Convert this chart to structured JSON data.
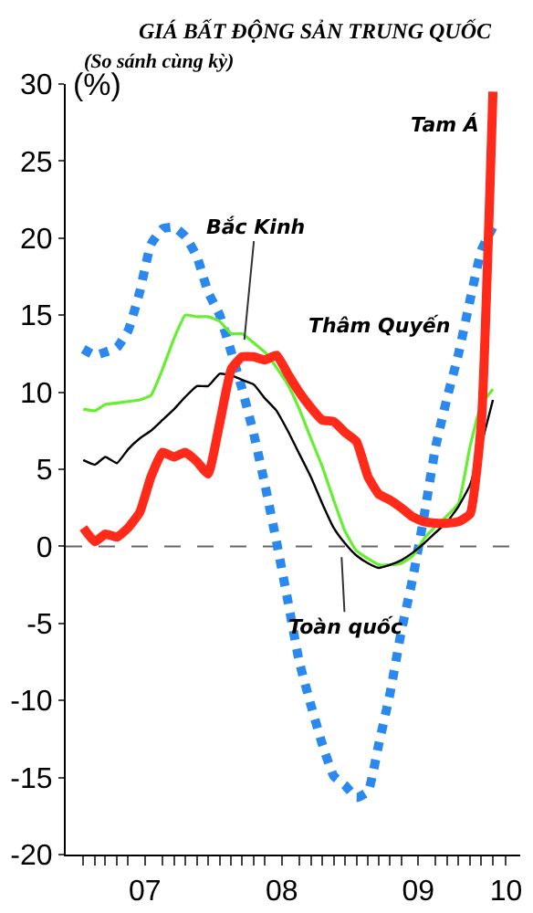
{
  "chart_data": {
    "type": "line",
    "title": "GIÁ BẤT ĐỘNG SẢN TRUNG QUỐC",
    "subtitle": "(So sánh cùng kỳ)",
    "ylabel": "(%)",
    "x": [
      "2007-01",
      "2007-02",
      "2007-03",
      "2007-04",
      "2007-05",
      "2007-06",
      "2007-07",
      "2007-08",
      "2007-09",
      "2007-10",
      "2007-11",
      "2007-12",
      "2008-01",
      "2008-02",
      "2008-03",
      "2008-04",
      "2008-05",
      "2008-06",
      "2008-07",
      "2008-08",
      "2008-09",
      "2008-10",
      "2008-11",
      "2008-12",
      "2009-01",
      "2009-02",
      "2009-03",
      "2009-04",
      "2009-05",
      "2009-06",
      "2009-07",
      "2009-08",
      "2009-09",
      "2009-10",
      "2009-11",
      "2009-12",
      "2010-01"
    ],
    "series": [
      {
        "name": "Thâm Quyến",
        "color": "#2a88ee",
        "line_style": "dotted",
        "values": [
          12.8,
          12.4,
          12.6,
          12.9,
          14.0,
          16.5,
          19.6,
          20.6,
          20.7,
          20.1,
          18.8,
          16.5,
          15.0,
          12.6,
          10.2,
          7.3,
          4.0,
          0.3,
          -3.5,
          -7.5,
          -10.3,
          -12.8,
          -14.9,
          -15.5,
          -16.3,
          -15.9,
          -12.9,
          -9.5,
          -5.5,
          -2.0,
          2.0,
          6.5,
          9.7,
          12.5,
          16.0,
          19.2,
          20.7
        ]
      },
      {
        "name": "Bắc Kinh",
        "color": "#66ee33",
        "line_style": "solid",
        "values": [
          8.9,
          8.8,
          9.2,
          9.3,
          9.4,
          9.5,
          9.8,
          11.5,
          13.5,
          15.0,
          14.9,
          14.9,
          14.6,
          13.8,
          13.8,
          13.2,
          12.6,
          11.6,
          10.5,
          8.9,
          7.0,
          5.2,
          3.0,
          1.0,
          -0.3,
          -0.8,
          -1.2,
          -1.2,
          -1.1,
          -0.6,
          0.5,
          1.3,
          2.0,
          2.8,
          6.5,
          9.2,
          10.2
        ]
      },
      {
        "name": "Toàn quốc",
        "color": "#000000",
        "line_style": "solid",
        "values": [
          5.6,
          5.3,
          5.8,
          5.4,
          6.3,
          7.0,
          7.5,
          8.2,
          8.9,
          9.7,
          10.4,
          10.4,
          11.2,
          11.1,
          10.8,
          10.5,
          9.6,
          8.8,
          7.5,
          6.0,
          4.5,
          2.8,
          1.2,
          0.2,
          -0.6,
          -1.1,
          -1.4,
          -1.2,
          -0.9,
          -0.4,
          0.2,
          0.9,
          1.6,
          2.6,
          4.0,
          null,
          9.5
        ]
      },
      {
        "name": "Tam Á",
        "color": "#ff2a1a",
        "line_style": "solid",
        "values": [
          1.2,
          0.3,
          0.8,
          0.6,
          1.2,
          2.2,
          4.5,
          6.1,
          5.8,
          6.1,
          5.5,
          4.7,
          8.0,
          11.5,
          12.3,
          12.3,
          12.1,
          12.4,
          11.2,
          10.0,
          9.0,
          8.2,
          8.1,
          7.4,
          6.8,
          4.5,
          3.4,
          3.0,
          2.5,
          1.9,
          1.6,
          1.5,
          1.5,
          1.6,
          2.1,
          8.0,
          29.5
        ]
      }
    ],
    "xlim": [
      "2006-11-15",
      "2010-03-15"
    ],
    "xticks": [
      {
        "value": "2007-01-01",
        "label": null
      },
      {
        "value": "2007-02-01",
        "label": null
      },
      {
        "value": "2007-03-01",
        "label": null
      },
      {
        "value": "2007-04-01",
        "label": null
      },
      {
        "value": "2007-05-01",
        "label": null
      },
      {
        "value": "2007-06-15",
        "label": "07"
      },
      {
        "value": "2007-08-01",
        "label": null
      },
      {
        "value": "2007-09-01",
        "label": null
      },
      {
        "value": "2007-10-01",
        "label": null
      },
      {
        "value": "2007-11-01",
        "label": null
      },
      {
        "value": "2007-12-01",
        "label": null
      },
      {
        "value": "2008-01-01",
        "label": null
      },
      {
        "value": "2008-02-01",
        "label": null
      },
      {
        "value": "2008-03-01",
        "label": null
      },
      {
        "value": "2008-04-01",
        "label": null
      },
      {
        "value": "2008-05-01",
        "label": null
      },
      {
        "value": "2008-06-15",
        "label": "08"
      },
      {
        "value": "2008-08-01",
        "label": null
      },
      {
        "value": "2008-09-01",
        "label": null
      },
      {
        "value": "2008-10-01",
        "label": null
      },
      {
        "value": "2008-11-01",
        "label": null
      },
      {
        "value": "2008-12-01",
        "label": null
      },
      {
        "value": "2009-01-01",
        "label": null
      },
      {
        "value": "2009-02-01",
        "label": null
      },
      {
        "value": "2009-03-01",
        "label": null
      },
      {
        "value": "2009-04-01",
        "label": null
      },
      {
        "value": "2009-05-01",
        "label": null
      },
      {
        "value": "2009-06-15",
        "label": "09"
      },
      {
        "value": "2009-08-01",
        "label": null
      },
      {
        "value": "2009-09-01",
        "label": null
      },
      {
        "value": "2009-10-01",
        "label": null
      },
      {
        "value": "2009-11-01",
        "label": null
      },
      {
        "value": "2009-12-01",
        "label": null
      },
      {
        "value": "2010-01-01",
        "label": null
      },
      {
        "value": "2010-02-05",
        "label": "10"
      }
    ],
    "ylim": [
      -20,
      30
    ],
    "yticks": [
      -20,
      -15,
      -10,
      -5,
      0,
      5,
      10,
      15,
      20,
      25,
      30
    ],
    "ref_lines": [
      {
        "axis": "y",
        "value": 0,
        "color": "#666666",
        "line_style": "dashed"
      }
    ],
    "grid": false,
    "legend": false,
    "marker": "none"
  }
}
